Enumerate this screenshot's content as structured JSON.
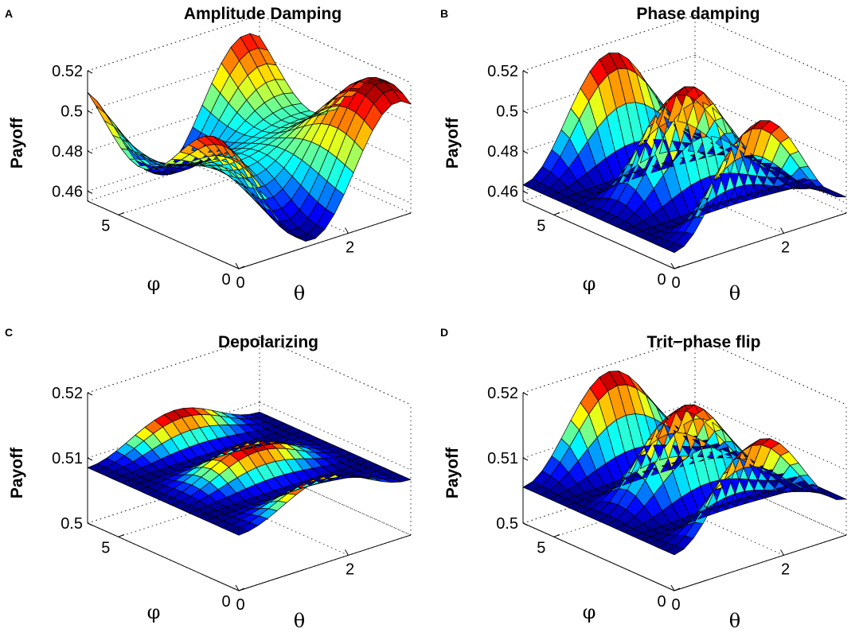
{
  "chart_data": [
    {
      "panel": "A",
      "type": "surface",
      "title": "Amplitude Damping",
      "zlabel": "Payoff",
      "xlabel": "θ",
      "ylabel": "φ",
      "zlim": [
        0.455,
        0.52
      ],
      "zticks": [
        "0.46",
        "0.48",
        "0.5",
        "0.52"
      ],
      "zticks_values": [
        0.46,
        0.48,
        0.5,
        0.52
      ],
      "xticks": [
        "0",
        "2"
      ],
      "xticks_values": [
        0,
        2
      ],
      "yticks": [
        "0",
        "5"
      ],
      "yticks_values": [
        0,
        5
      ],
      "surface": {
        "base": 0.485,
        "ampX": 0.03,
        "ampY": 0.006,
        "shift": 0.5
      }
    },
    {
      "panel": "B",
      "type": "surface",
      "title": "Phase damping",
      "zlabel": "Payoff",
      "xlabel": "θ",
      "ylabel": "φ",
      "zlim": [
        0.455,
        0.52
      ],
      "zticks": [
        "0.46",
        "0.48",
        "0.5",
        "0.52"
      ],
      "zticks_values": [
        0.46,
        0.48,
        0.5,
        0.52
      ],
      "xticks": [
        "0",
        "2"
      ],
      "xticks_values": [
        0,
        2
      ],
      "yticks": [
        "0",
        "5"
      ],
      "yticks_values": [
        0,
        5
      ],
      "surface": {
        "base": 0.463,
        "amp": 0.052
      }
    },
    {
      "panel": "C",
      "type": "surface",
      "title": "Depolarizing",
      "zlabel": "Payoff",
      "xlabel": "θ",
      "ylabel": "φ",
      "zlim": [
        0.5,
        0.52
      ],
      "zticks": [
        "0.5",
        "0.51",
        "0.52"
      ],
      "zticks_values": [
        0.5,
        0.51,
        0.52
      ],
      "xticks": [
        "0",
        "2"
      ],
      "xticks_values": [
        0,
        2
      ],
      "yticks": [
        "0",
        "5"
      ],
      "yticks_values": [
        0,
        5
      ],
      "surface": {
        "base": 0.5085,
        "amp": 0.0045
      }
    },
    {
      "panel": "D",
      "type": "surface",
      "title": "Trit−phase flip",
      "zlabel": "Payoff",
      "xlabel": "θ",
      "ylabel": "φ",
      "zlim": [
        0.5,
        0.52
      ],
      "zticks": [
        "0.5",
        "0.51",
        "0.52"
      ],
      "zticks_values": [
        0.5,
        0.51,
        0.52
      ],
      "xticks": [
        "0",
        "2"
      ],
      "xticks_values": [
        0,
        2
      ],
      "yticks": [
        "0",
        "5"
      ],
      "yticks_values": [
        0,
        5
      ],
      "surface": {
        "base": 0.5055,
        "amp": 0.0135
      }
    }
  ]
}
